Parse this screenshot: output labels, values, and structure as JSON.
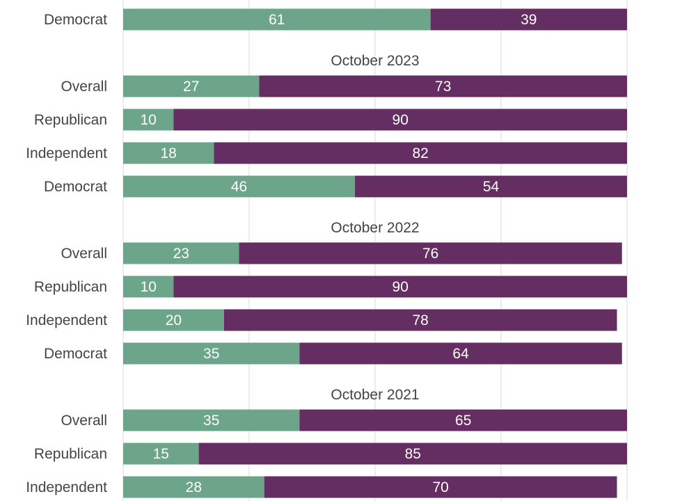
{
  "chart_data": {
    "type": "bar",
    "orientation": "horizontal",
    "stacked": true,
    "xlim": [
      0,
      100
    ],
    "grid": true,
    "colors": {
      "first": "#6da58a",
      "second": "#652e63"
    },
    "groups": [
      {
        "title": "",
        "rows": [
          {
            "label": "Democrat",
            "values": [
              61,
              39
            ]
          }
        ]
      },
      {
        "title": "October 2023",
        "rows": [
          {
            "label": "Overall",
            "values": [
              27,
              73
            ]
          },
          {
            "label": "Republican",
            "values": [
              10,
              90
            ]
          },
          {
            "label": "Independent",
            "values": [
              18,
              82
            ]
          },
          {
            "label": "Democrat",
            "values": [
              46,
              54
            ]
          }
        ]
      },
      {
        "title": "October 2022",
        "rows": [
          {
            "label": "Overall",
            "values": [
              23,
              76
            ]
          },
          {
            "label": "Republican",
            "values": [
              10,
              90
            ]
          },
          {
            "label": "Independent",
            "values": [
              20,
              78
            ]
          },
          {
            "label": "Democrat",
            "values": [
              35,
              64
            ]
          }
        ]
      },
      {
        "title": "October 2021",
        "rows": [
          {
            "label": "Overall",
            "values": [
              35,
              65
            ]
          },
          {
            "label": "Republican",
            "values": [
              15,
              85
            ]
          },
          {
            "label": "Independent",
            "values": [
              28,
              70
            ]
          }
        ]
      }
    ]
  }
}
